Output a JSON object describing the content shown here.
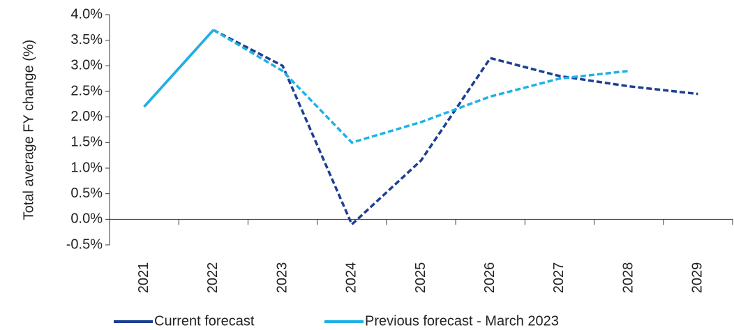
{
  "chart_data": {
    "type": "line",
    "y_label": "Total average FY change (%)",
    "categories": [
      "2021",
      "2022",
      "2023",
      "2024",
      "2025",
      "2026",
      "2027",
      "2028",
      "2029"
    ],
    "series": [
      {
        "name": "Current forecast",
        "color": "#1c3f94",
        "values": [
          2.2,
          3.7,
          3.0,
          -0.1,
          1.15,
          3.15,
          2.8,
          2.6,
          2.45
        ]
      },
      {
        "name": "Previous forecast - March 2023",
        "color": "#1fb1e6",
        "values": [
          2.2,
          3.7,
          2.9,
          1.5,
          1.9,
          2.4,
          2.75,
          2.9,
          null
        ]
      }
    ],
    "ylim": [
      -0.5,
      4.0
    ],
    "yticks": [
      {
        "value": -0.5,
        "label": "-0.5%"
      },
      {
        "value": 0,
        "label": "0.0%"
      },
      {
        "value": 0.5,
        "label": "0.5%"
      },
      {
        "value": 1.0,
        "label": "1.0%"
      },
      {
        "value": 1.5,
        "label": "1.5%"
      },
      {
        "value": 2.0,
        "label": "2.0%"
      },
      {
        "value": 2.5,
        "label": "2.5%"
      },
      {
        "value": 3.0,
        "label": "3.0%"
      },
      {
        "value": 3.5,
        "label": "3.5%"
      },
      {
        "value": 4.0,
        "label": "4.0%"
      }
    ],
    "legend": "bottom"
  }
}
